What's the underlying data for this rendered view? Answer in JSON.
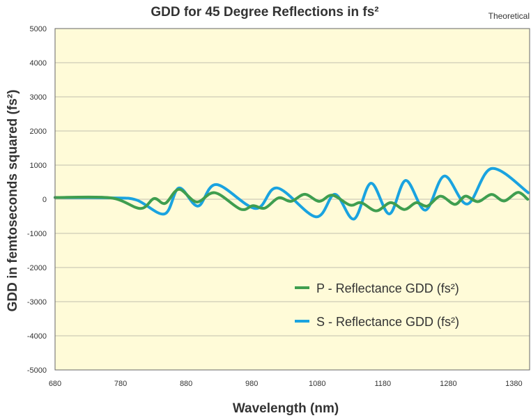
{
  "chart_data": {
    "type": "line",
    "title": "GDD for 45 Degree Reflections in fs²",
    "subtitle": "Theoretical",
    "xlabel": "Wavelength (nm)",
    "ylabel": "GDD in femtoseconds squared (fs²)",
    "xlim": [
      680,
      1404
    ],
    "ylim": [
      -5000,
      5000
    ],
    "xticks": [
      680,
      780,
      880,
      980,
      1080,
      1180,
      1280,
      1380
    ],
    "yticks": [
      5000,
      4000,
      3000,
      2000,
      1000,
      0,
      -1000,
      -2000,
      -3000,
      -4000,
      -5000
    ],
    "grid": true,
    "legend_position": "lower-right",
    "background_color": "#fffbd8",
    "series": [
      {
        "name": "P - Reflectance GDD (fs²)",
        "color": "#3f9e4f",
        "x": [
          680,
          765,
          810,
          831,
          848,
          869,
          896,
          924,
          963,
          982,
          1000,
          1021,
          1040,
          1061,
          1083,
          1103,
          1130,
          1147,
          1170,
          1192,
          1213,
          1231,
          1248,
          1268,
          1290,
          1306,
          1325,
          1346,
          1365,
          1386,
          1401
        ],
        "y": [
          50,
          40,
          -270,
          20,
          -120,
          290,
          -80,
          190,
          -290,
          -190,
          -260,
          40,
          -60,
          145,
          -60,
          120,
          -170,
          -100,
          -340,
          -100,
          -300,
          -100,
          -200,
          90,
          -150,
          90,
          -70,
          140,
          -50,
          200,
          0
        ]
      },
      {
        "name": "S - Reflectance GDD (fs²)",
        "color": "#1aa3e0",
        "x": [
          680,
          765,
          804,
          847,
          869,
          898,
          926,
          986,
          1019,
          1078,
          1107,
          1136,
          1162,
          1190,
          1215,
          1245,
          1274,
          1309,
          1346,
          1402
        ],
        "y": [
          50,
          40,
          -20,
          -430,
          330,
          -200,
          430,
          -270,
          330,
          -515,
          145,
          -580,
          470,
          -430,
          550,
          -320,
          680,
          -140,
          900,
          190
        ]
      }
    ]
  }
}
